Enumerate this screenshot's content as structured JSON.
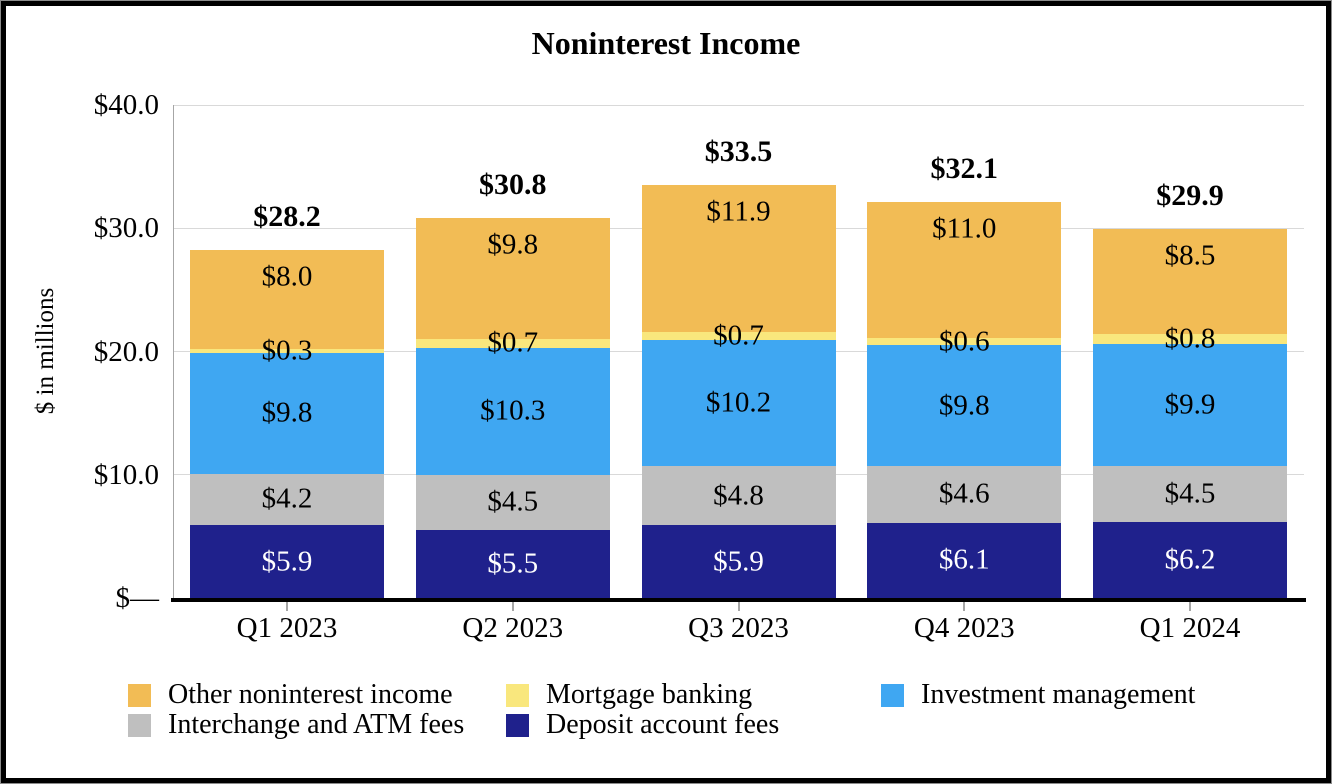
{
  "chart_data": {
    "type": "bar",
    "stacked": true,
    "title": "Noninterest Income",
    "ylabel": "$ in millions",
    "value_prefix": "$",
    "categories": [
      "Q1 2023",
      "Q2 2023",
      "Q3 2023",
      "Q4 2023",
      "Q1 2024"
    ],
    "series": [
      {
        "name": "Deposit account fees",
        "color": "#1F218C",
        "label_color": "#FFFFFF",
        "label_position": "center",
        "values": [
          5.9,
          5.5,
          5.9,
          6.1,
          6.2
        ]
      },
      {
        "name": "Interchange and ATM fees",
        "color": "#BFBFBF",
        "label_color": "#000000",
        "label_position": "center",
        "values": [
          4.2,
          4.5,
          4.8,
          4.6,
          4.5
        ]
      },
      {
        "name": "Investment management",
        "color": "#3FA7F2",
        "label_color": "#000000",
        "label_position": "center",
        "values": [
          9.8,
          10.3,
          10.2,
          9.8,
          9.9
        ]
      },
      {
        "name": "Mortgage banking",
        "color": "#F9E77D",
        "label_color": "#000000",
        "label_position": "center",
        "values": [
          0.3,
          0.7,
          0.7,
          0.6,
          0.8
        ]
      },
      {
        "name": "Other noninterest income",
        "color": "#F2BC55",
        "label_color": "#000000",
        "label_position": "inside-end",
        "values": [
          8.0,
          9.8,
          11.9,
          11.0,
          8.5
        ]
      }
    ],
    "totals": [
      28.2,
      30.8,
      33.5,
      32.1,
      29.9
    ],
    "y_ticks": [
      {
        "label": "$40.0",
        "value": 40
      },
      {
        "label": "$30.0",
        "value": 30
      },
      {
        "label": "$20.0",
        "value": 20
      },
      {
        "label": "$10.0",
        "value": 10
      },
      {
        "label": "$—",
        "value": 0
      }
    ],
    "ylim": [
      0,
      40
    ],
    "grid": true,
    "legend": {
      "position": "bottom",
      "order": [
        "Other noninterest income",
        "Mortgage banking",
        "Investment management",
        "Interchange and ATM fees",
        "Deposit account fees"
      ]
    },
    "colors": {
      "gridline": "#D9D9D9",
      "axis_line": "#A6A6A6",
      "axis_bottom": "#000000",
      "tick": "#A6A6A6",
      "background": "#FFFFFF",
      "border": "#000000"
    }
  }
}
